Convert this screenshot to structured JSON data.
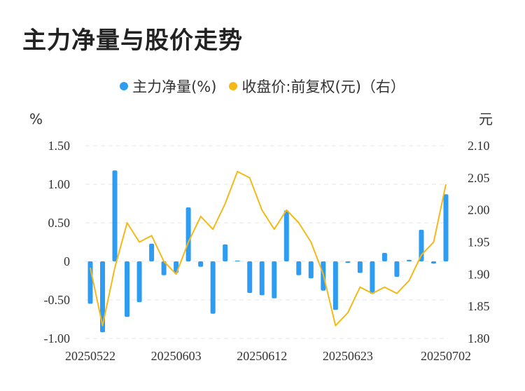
{
  "title": "主力净量与股价走势",
  "chart_data": {
    "type": "bar+line",
    "title": "主力净量与股价走势",
    "left_unit": "%",
    "right_unit": "元",
    "legend_position": "top-center",
    "grid": "horizontal-dashed",
    "series": [
      {
        "name": "主力净量(%)",
        "type": "bar",
        "axis": "left",
        "color": "#2e9cf0",
        "values": [
          -0.55,
          -0.92,
          1.18,
          -0.72,
          -0.53,
          0.23,
          -0.18,
          -0.15,
          0.7,
          -0.07,
          -0.68,
          0.22,
          0.01,
          -0.41,
          -0.44,
          -0.48,
          0.66,
          -0.18,
          -0.22,
          -0.38,
          -0.63,
          -0.02,
          -0.15,
          -0.42,
          0.11,
          -0.2,
          0.02,
          0.41,
          -0.03,
          0.87
        ]
      },
      {
        "name": "收盘价:前复权(元)（右）",
        "type": "line",
        "axis": "right",
        "color": "#f5b817",
        "values": [
          1.91,
          1.82,
          1.91,
          1.98,
          1.95,
          1.96,
          1.92,
          1.9,
          1.95,
          1.99,
          1.97,
          2.01,
          2.06,
          2.05,
          2.0,
          1.97,
          2.0,
          1.98,
          1.95,
          1.9,
          1.82,
          1.84,
          1.88,
          1.87,
          1.88,
          1.87,
          1.89,
          1.93,
          1.95,
          2.04
        ]
      }
    ],
    "x_tick_labels": [
      "20250522",
      "20250603",
      "20250612",
      "20250623",
      "20250702"
    ],
    "x_tick_indices": [
      0,
      7,
      14,
      21,
      29
    ],
    "y_left": {
      "range": [
        -1.0,
        1.5
      ],
      "ticks": [
        "1.50",
        "1.00",
        "0.50",
        "0",
        "-0.50",
        "-1.00"
      ]
    },
    "y_right": {
      "range": [
        1.8,
        2.1
      ],
      "ticks": [
        "2.10",
        "2.05",
        "2.00",
        "1.95",
        "1.90",
        "1.85",
        "1.80"
      ]
    }
  }
}
